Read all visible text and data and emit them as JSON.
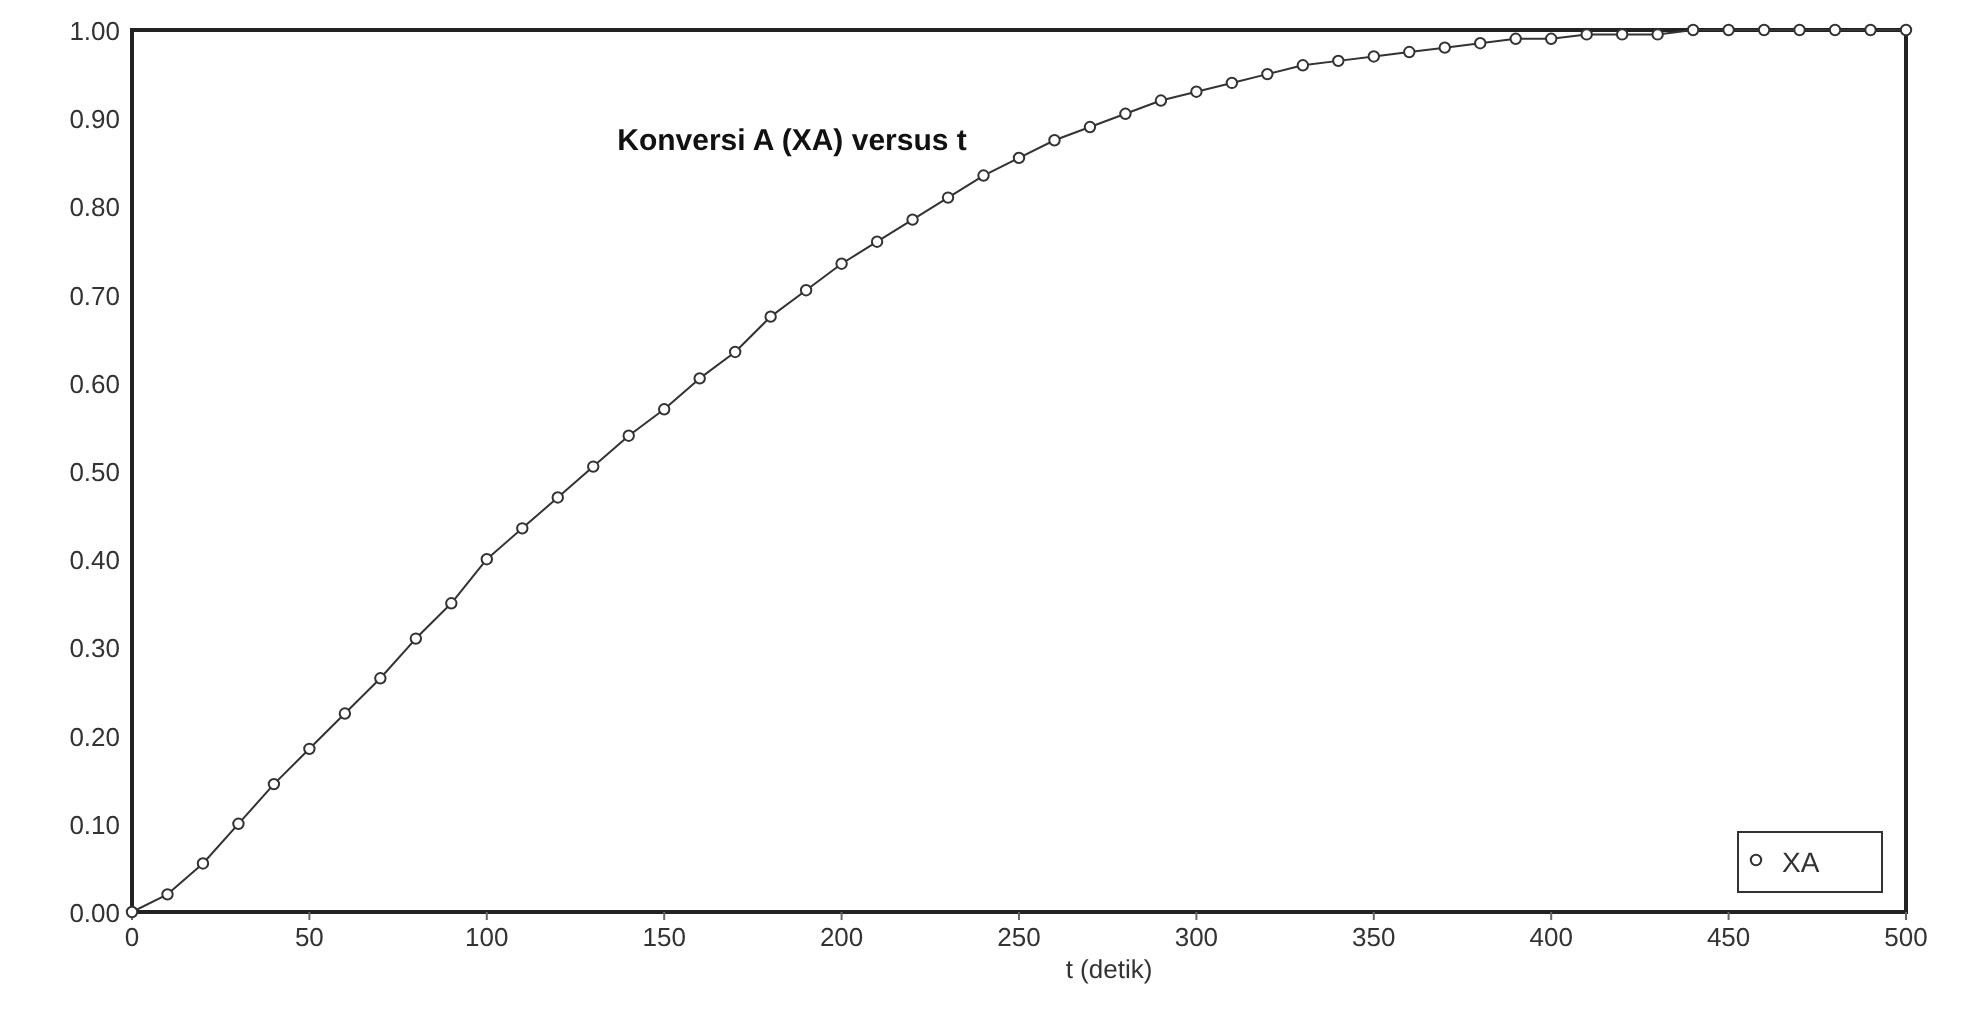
{
  "chart_data": {
    "type": "line",
    "title": "Konversi A (XA) versus t",
    "xlabel": "t (detik)",
    "x": [
      0,
      10,
      20,
      30,
      40,
      50,
      60,
      70,
      80,
      90,
      100,
      110,
      120,
      130,
      140,
      150,
      160,
      170,
      180,
      190,
      200,
      210,
      220,
      230,
      240,
      250,
      260,
      270,
      280,
      290,
      300,
      310,
      320,
      330,
      340,
      350,
      360,
      370,
      380,
      390,
      400,
      410,
      420,
      430,
      440,
      450,
      460,
      470,
      480,
      490,
      500
    ],
    "series": [
      {
        "name": "XA",
        "color": "#333333",
        "values": [
          0,
          0.02,
          0.055,
          0.1,
          0.145,
          0.185,
          0.225,
          0.265,
          0.31,
          0.35,
          0.4,
          0.435,
          0.47,
          0.505,
          0.54,
          0.57,
          0.605,
          0.635,
          0.675,
          0.705,
          0.735,
          0.76,
          0.785,
          0.81,
          0.835,
          0.855,
          0.875,
          0.89,
          0.905,
          0.92,
          0.93,
          0.94,
          0.95,
          0.96,
          0.965,
          0.97,
          0.975,
          0.98,
          0.985,
          0.99,
          0.99,
          0.995,
          0.995,
          0.995,
          1,
          1,
          1,
          1,
          1,
          1,
          1
        ]
      }
    ],
    "xlim": [
      0,
      500
    ],
    "xticks": [
      0,
      50,
      100,
      150,
      200,
      250,
      300,
      350,
      400,
      450,
      500
    ],
    "ylim": [
      0,
      1
    ],
    "yticks": [
      {
        "value": 0,
        "label": "0.00"
      },
      {
        "value": 0.1,
        "label": "0.10"
      },
      {
        "value": 0.2,
        "label": "0.20"
      },
      {
        "value": 0.3,
        "label": "0.30"
      },
      {
        "value": 0.4,
        "label": "0.40"
      },
      {
        "value": 0.5,
        "label": "0.50"
      },
      {
        "value": 0.6,
        "label": "0.60"
      },
      {
        "value": 0.7,
        "label": "0.70"
      },
      {
        "value": 0.8,
        "label": "0.80"
      },
      {
        "value": 0.9,
        "label": "0.90"
      },
      {
        "value": 1,
        "label": "1.00"
      }
    ],
    "legend": "bottom right",
    "marker": "circle",
    "line_style": "solid"
  }
}
